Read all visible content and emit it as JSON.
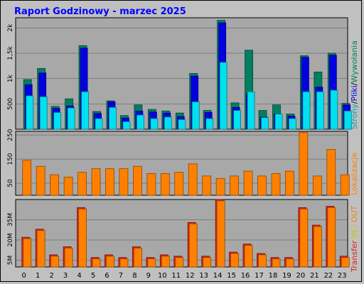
{
  "title": "Raport Godzinowy -  marzec 2025",
  "colors": {
    "background": "#c0c0c0",
    "plot": "#a8a8a8",
    "title": "#0000ff",
    "visits": "#008060",
    "pages": "#0000e0",
    "hits": "#00e0f0",
    "sites": "#ff8000",
    "kb_out": "#ff8000",
    "kb_in": "#e02020"
  },
  "right_labels": {
    "top": [
      "Strony",
      "/",
      "Pliki",
      "/",
      "Wywołania"
    ],
    "middle": "Lokalizacje",
    "bottom": [
      "Transfer",
      " IN / ",
      "OUT"
    ]
  },
  "chart_data": [
    {
      "type": "bar",
      "panel": "top",
      "categories": [
        "0",
        "1",
        "2",
        "3",
        "4",
        "5",
        "6",
        "7",
        "8",
        "9",
        "10",
        "11",
        "12",
        "13",
        "14",
        "15",
        "16",
        "17",
        "18",
        "19",
        "20",
        "21",
        "22",
        "23"
      ],
      "y_ticks": [
        "500",
        "1k",
        "1,5k",
        "2k"
      ],
      "ylim": [
        0,
        2200
      ],
      "series": [
        {
          "name": "Wywołania",
          "color": "#008060",
          "values": [
            980,
            1200,
            450,
            600,
            1650,
            350,
            560,
            270,
            480,
            390,
            360,
            320,
            1100,
            370,
            2150,
            520,
            1560,
            370,
            480,
            300,
            1450,
            1130,
            1500,
            510
          ]
        },
        {
          "name": "Pliki",
          "color": "#0000e0",
          "values": [
            880,
            1110,
            410,
            460,
            1600,
            310,
            540,
            220,
            360,
            340,
            320,
            250,
            1050,
            330,
            2100,
            430,
            700,
            240,
            300,
            260,
            1420,
            830,
            1460,
            480
          ]
        },
        {
          "name": "Strony",
          "color": "#00e0f0",
          "values": [
            660,
            640,
            330,
            420,
            740,
            210,
            430,
            150,
            280,
            210,
            240,
            190,
            540,
            210,
            1320,
            370,
            740,
            230,
            300,
            210,
            740,
            740,
            770,
            360
          ]
        }
      ]
    },
    {
      "type": "bar",
      "panel": "middle",
      "categories": [
        "0",
        "1",
        "2",
        "3",
        "4",
        "5",
        "6",
        "7",
        "8",
        "9",
        "10",
        "11",
        "12",
        "13",
        "14",
        "15",
        "16",
        "17",
        "18",
        "19",
        "20",
        "21",
        "22",
        "23"
      ],
      "y_ticks": [
        "50",
        "150",
        "250"
      ],
      "ylim": [
        0,
        265
      ],
      "series": [
        {
          "name": "Lokalizacje",
          "color": "#ff8000",
          "values": [
            145,
            120,
            85,
            75,
            95,
            110,
            110,
            110,
            120,
            90,
            90,
            95,
            130,
            80,
            70,
            80,
            100,
            80,
            90,
            100,
            260,
            80,
            190,
            85
          ]
        }
      ]
    },
    {
      "type": "bar",
      "panel": "bottom",
      "categories": [
        "0",
        "1",
        "2",
        "3",
        "4",
        "5",
        "6",
        "7",
        "8",
        "9",
        "10",
        "11",
        "12",
        "13",
        "14",
        "15",
        "16",
        "17",
        "18",
        "19",
        "20",
        "21",
        "22",
        "23"
      ],
      "y_ticks": [
        "5M",
        "20M",
        "35M"
      ],
      "ylim": [
        0,
        50
      ],
      "series": [
        {
          "name": "OUT",
          "color": "#e02020",
          "values": [
            22,
            28,
            9,
            15,
            44,
            7,
            9,
            7,
            15,
            7,
            9,
            8,
            33,
            8,
            50,
            11,
            17,
            10,
            7,
            7,
            44,
            31,
            45,
            8
          ]
        },
        {
          "name": "IN",
          "color": "#ff8000",
          "values": [
            21,
            27,
            8,
            14,
            43,
            6,
            8,
            6,
            14,
            6,
            8,
            7,
            32,
            7,
            49,
            10,
            16,
            9,
            6,
            6,
            43,
            30,
            44,
            7
          ]
        }
      ]
    }
  ]
}
